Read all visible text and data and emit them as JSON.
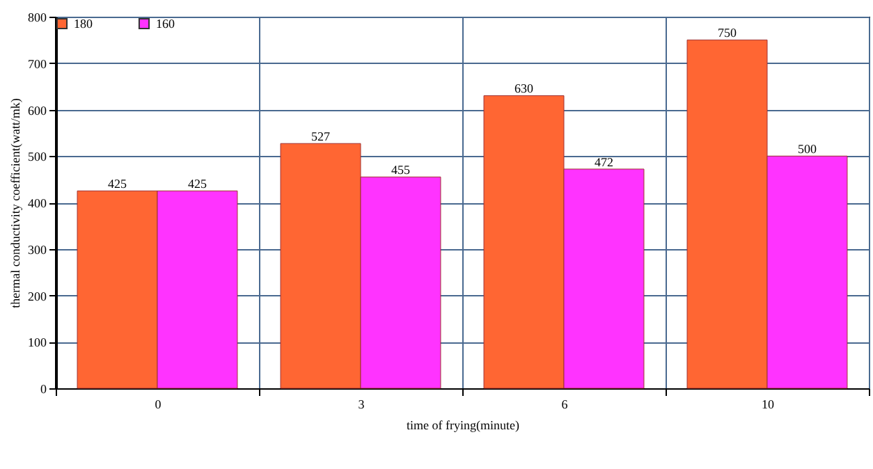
{
  "chart_data": {
    "type": "bar",
    "xlabel": "time of frying(minute)",
    "ylabel": "thermal conductivity coefficient(watt/mk)",
    "categories": [
      "0",
      "3",
      "6",
      "10"
    ],
    "series": [
      {
        "name": "180",
        "color": "#ff6633",
        "values": [
          425,
          527,
          630,
          750
        ]
      },
      {
        "name": "160",
        "color": "#ff33ff",
        "values": [
          425,
          455,
          472,
          500
        ]
      }
    ],
    "ylim": [
      0,
      800
    ],
    "yticks": [
      0,
      100,
      200,
      300,
      400,
      500,
      600,
      700,
      800
    ],
    "grid": true,
    "legend": "top left",
    "data_labels": true
  }
}
